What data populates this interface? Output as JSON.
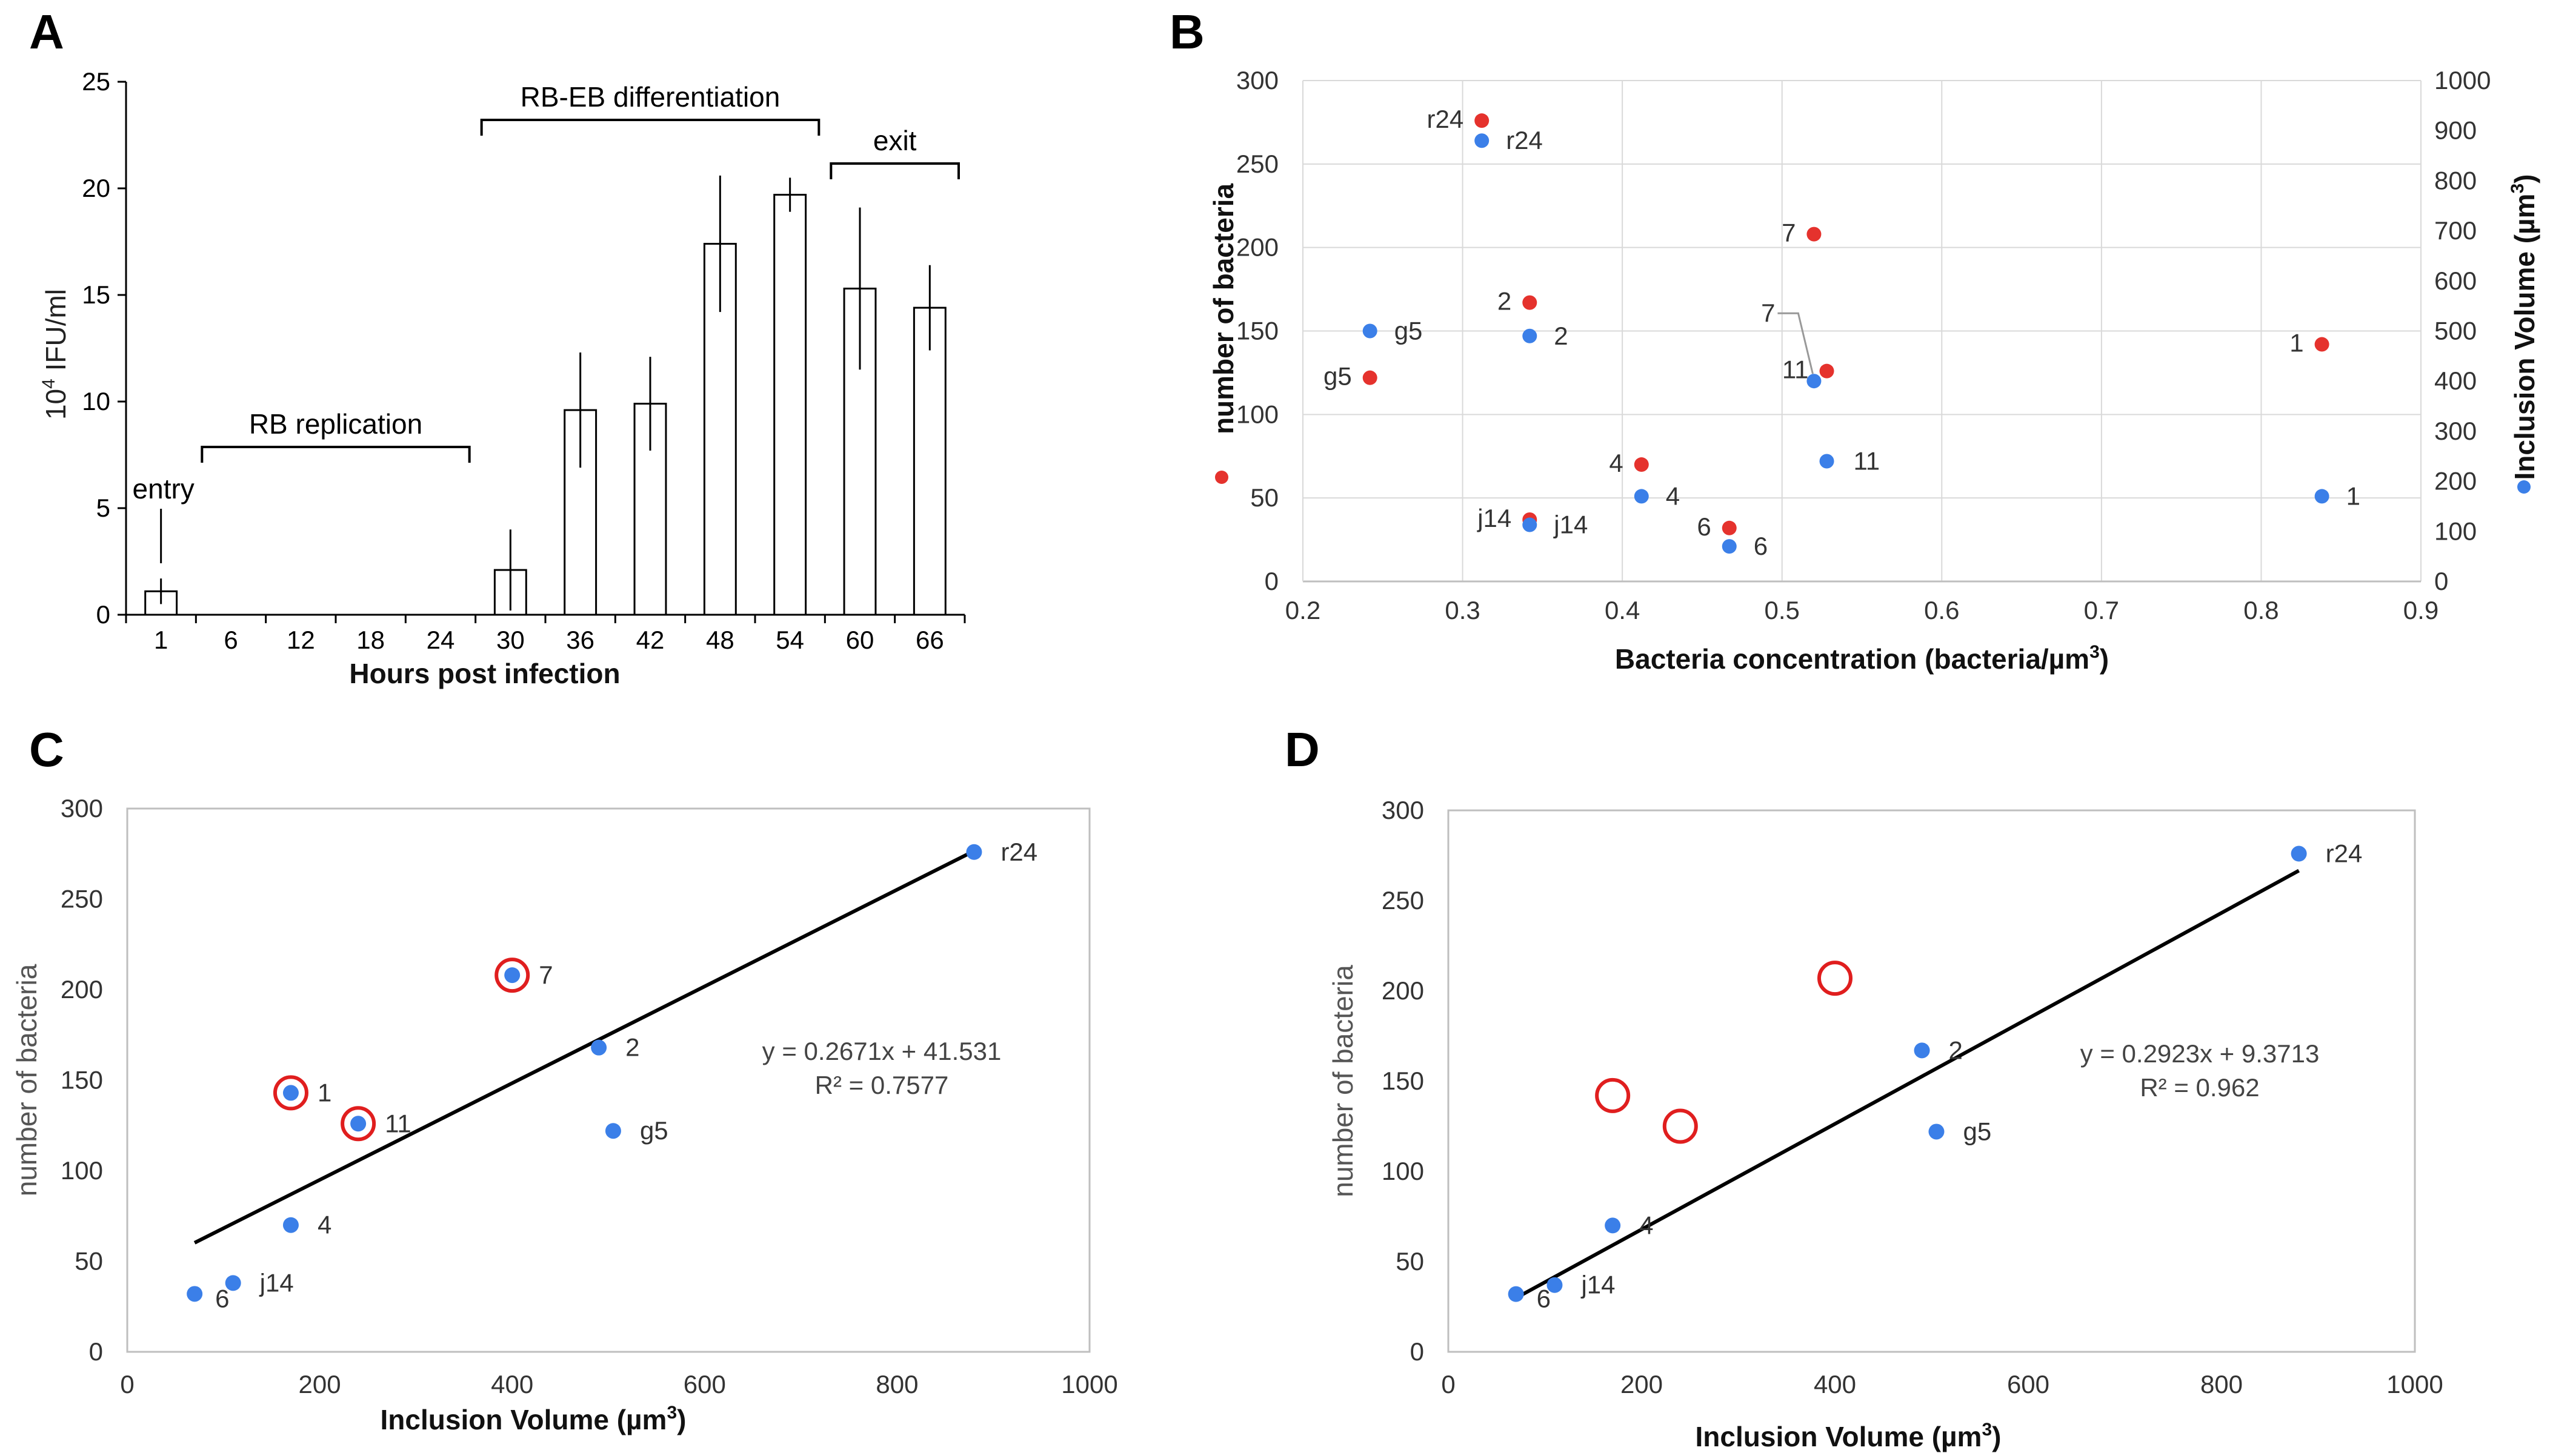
{
  "panels": {
    "A": "A",
    "B": "B",
    "C": "C",
    "D": "D"
  },
  "colors": {
    "red": "#e5322d",
    "blue": "#3b7fe8",
    "grid": "#d9d9d9",
    "axis": "#bfbfbf",
    "black": "#000000",
    "ring": "#e01e1e"
  },
  "chart_data": [
    {
      "id": "A",
      "type": "bar",
      "categories": [
        "1",
        "6",
        "12",
        "18",
        "24",
        "30",
        "36",
        "42",
        "48",
        "54",
        "60",
        "66"
      ],
      "values": [
        1.1,
        0,
        0,
        0,
        0,
        2.1,
        9.6,
        9.9,
        17.4,
        19.7,
        15.3,
        14.4
      ],
      "errors": [
        0.6,
        0,
        0,
        0,
        0,
        1.9,
        2.7,
        2.2,
        3.2,
        0.8,
        3.8,
        2.0
      ],
      "xlabel": "Hours post infection",
      "ylabel": "10",
      "ylabel_sup": "4",
      "ylabel_rest": " IFU/ml",
      "ylim": [
        0,
        25
      ],
      "yticks": [
        "0",
        "5",
        "10",
        "15",
        "20",
        "25"
      ],
      "phases": [
        {
          "label": "entry",
          "from": 0,
          "to": 0
        },
        {
          "label": "RB replication",
          "from": 0.5,
          "to": 4.5
        },
        {
          "label": "RB-EB differentiation",
          "from": 4.5,
          "to": 9.5
        },
        {
          "label": "exit",
          "from": 9.5,
          "to": 11.5
        }
      ]
    },
    {
      "id": "B",
      "type": "scatter",
      "xlabel": "Bacteria concentration (bacteria/µm",
      "xlabel_sup": "3",
      "xlabel_end": ")",
      "ylabel": "number of bacteria",
      "y2label": "Inclusion Volume (µm",
      "y2label_sup": "3",
      "y2label_end": ")",
      "xlim": [
        0.2,
        0.9
      ],
      "ylim": [
        0,
        300
      ],
      "y2lim": [
        0,
        1000
      ],
      "xticks": [
        "0.2",
        "0.3",
        "0.4",
        "0.5",
        "0.6",
        "0.7",
        "0.8",
        "0.9"
      ],
      "yticks": [
        "0",
        "50",
        "100",
        "150",
        "200",
        "250",
        "300"
      ],
      "y2ticks": [
        "0",
        "100",
        "200",
        "300",
        "400",
        "500",
        "600",
        "700",
        "800",
        "900",
        "1000"
      ],
      "series": [
        {
          "name": "number of bacteria",
          "color": "red",
          "points": [
            {
              "label": "r24",
              "x": 0.312,
              "y": 276
            },
            {
              "label": "7",
              "x": 0.52,
              "y": 208
            },
            {
              "label": "2",
              "x": 0.342,
              "y": 167
            },
            {
              "label": "1",
              "x": 0.838,
              "y": 142
            },
            {
              "label": "11",
              "x": 0.528,
              "y": 126
            },
            {
              "label": "g5",
              "x": 0.242,
              "y": 122
            },
            {
              "label": "4",
              "x": 0.412,
              "y": 70
            },
            {
              "label": "j14",
              "x": 0.342,
              "y": 37
            },
            {
              "label": "6",
              "x": 0.467,
              "y": 32
            }
          ]
        },
        {
          "name": "Inclusion Volume",
          "color": "blue",
          "points": [
            {
              "label": "r24",
              "x": 0.312,
              "y": 880
            },
            {
              "label": "g5",
              "x": 0.242,
              "y": 500
            },
            {
              "label": "2",
              "x": 0.342,
              "y": 490
            },
            {
              "label": "7",
              "x": 0.52,
              "y": 400
            },
            {
              "label": "11",
              "x": 0.528,
              "y": 240
            },
            {
              "label": "4",
              "x": 0.412,
              "y": 170
            },
            {
              "label": "1",
              "x": 0.838,
              "y": 170
            },
            {
              "label": "j14",
              "x": 0.342,
              "y": 113
            },
            {
              "label": "6",
              "x": 0.467,
              "y": 70
            }
          ]
        }
      ]
    },
    {
      "id": "C",
      "type": "scatter",
      "xlabel": "Inclusion Volume (µm",
      "xlabel_sup": "3",
      "xlabel_end": ")",
      "ylabel": "number of bacteria",
      "xlim": [
        0,
        1000
      ],
      "ylim": [
        0,
        300
      ],
      "xticks": [
        "0",
        "200",
        "400",
        "600",
        "800",
        "1000"
      ],
      "yticks": [
        "0",
        "50",
        "100",
        "150",
        "200",
        "250",
        "300"
      ],
      "points": [
        {
          "label": "r24",
          "x": 880,
          "y": 276,
          "circled": false
        },
        {
          "label": "7",
          "x": 400,
          "y": 208,
          "circled": true
        },
        {
          "label": "2",
          "x": 490,
          "y": 168,
          "circled": false
        },
        {
          "label": "1",
          "x": 170,
          "y": 143,
          "circled": true
        },
        {
          "label": "11",
          "x": 240,
          "y": 126,
          "circled": true
        },
        {
          "label": "g5",
          "x": 505,
          "y": 122,
          "circled": false
        },
        {
          "label": "4",
          "x": 170,
          "y": 70,
          "circled": false
        },
        {
          "label": "j14",
          "x": 110,
          "y": 38,
          "circled": false
        },
        {
          "label": "6",
          "x": 70,
          "y": 32,
          "circled": false
        }
      ],
      "trendline": {
        "slope": 0.2671,
        "intercept": 41.531,
        "x_from": 70,
        "x_to": 880
      },
      "equation": "y = 0.2671x + 41.531",
      "r2": "R² = 0.7577"
    },
    {
      "id": "D",
      "type": "scatter",
      "xlabel": "Inclusion Volume (µm",
      "xlabel_sup": "3",
      "xlabel_end": ")",
      "ylabel": "number of bacteria",
      "xlim": [
        0,
        1000
      ],
      "ylim": [
        0,
        300
      ],
      "xticks": [
        "0",
        "200",
        "400",
        "600",
        "800",
        "1000"
      ],
      "yticks": [
        "0",
        "50",
        "100",
        "150",
        "200",
        "250",
        "300"
      ],
      "points": [
        {
          "label": "r24",
          "x": 880,
          "y": 276
        },
        {
          "label": "2",
          "x": 490,
          "y": 167
        },
        {
          "label": "g5",
          "x": 505,
          "y": 122
        },
        {
          "label": "4",
          "x": 170,
          "y": 70
        },
        {
          "label": "j14",
          "x": 110,
          "y": 37
        },
        {
          "label": "6",
          "x": 70,
          "y": 32
        }
      ],
      "excluded": [
        {
          "x": 400,
          "y": 207
        },
        {
          "x": 170,
          "y": 142
        },
        {
          "x": 240,
          "y": 125
        }
      ],
      "trendline": {
        "slope": 0.2923,
        "intercept": 9.3713,
        "x_from": 70,
        "x_to": 880
      },
      "equation": "y = 0.2923x + 9.3713",
      "r2": "R² = 0.962"
    }
  ]
}
